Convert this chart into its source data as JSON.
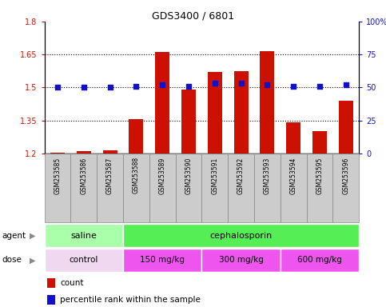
{
  "title": "GDS3400 / 6801",
  "samples": [
    "GSM253585",
    "GSM253586",
    "GSM253587",
    "GSM253588",
    "GSM253589",
    "GSM253590",
    "GSM253591",
    "GSM253592",
    "GSM253593",
    "GSM253594",
    "GSM253595",
    "GSM253596"
  ],
  "bar_values": [
    1.205,
    1.21,
    1.215,
    1.355,
    1.66,
    1.49,
    1.57,
    1.575,
    1.665,
    1.34,
    1.3,
    1.44
  ],
  "percentile_values": [
    50,
    50,
    50,
    51,
    52,
    51,
    53,
    53,
    52,
    51,
    51,
    52
  ],
  "bar_color": "#cc1100",
  "percentile_color": "#1111cc",
  "bar_bottom": 1.2,
  "ylim_left": [
    1.2,
    1.8
  ],
  "ylim_right": [
    0,
    100
  ],
  "yticks_left": [
    1.2,
    1.35,
    1.5,
    1.65,
    1.8
  ],
  "yticks_right": [
    0,
    25,
    50,
    75,
    100
  ],
  "ytick_labels_left": [
    "1.2",
    "1.35",
    "1.5",
    "1.65",
    "1.8"
  ],
  "ytick_labels_right": [
    "0",
    "25",
    "50",
    "75",
    "100%"
  ],
  "hlines": [
    1.35,
    1.5,
    1.65
  ],
  "agent_labels": [
    {
      "text": "saline",
      "xstart": 0,
      "xend": 3
    },
    {
      "text": "cephalosporin",
      "xstart": 3,
      "xend": 12
    }
  ],
  "dose_labels": [
    {
      "text": "control",
      "xstart": 0,
      "xend": 3
    },
    {
      "text": "150 mg/kg",
      "xstart": 3,
      "xend": 6
    },
    {
      "text": "300 mg/kg",
      "xstart": 6,
      "xend": 9
    },
    {
      "text": "600 mg/kg",
      "xstart": 9,
      "xend": 12
    }
  ],
  "agent_colors": [
    "#aaffaa",
    "#55ee55"
  ],
  "dose_colors": [
    "#f0d8f0",
    "#ee55ee",
    "#ee55ee",
    "#ee55ee"
  ],
  "legend_count_color": "#cc1100",
  "legend_percentile_color": "#1111cc",
  "tick_color_left": "#cc1100",
  "tick_color_right": "#1111cc",
  "sample_box_color": "#cccccc",
  "sample_box_border": "#888888"
}
